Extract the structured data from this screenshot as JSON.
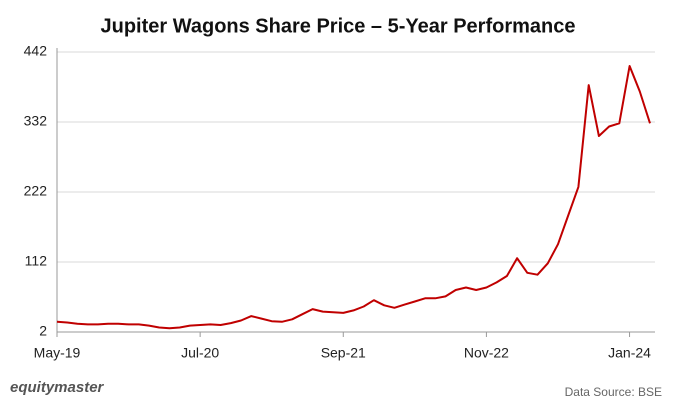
{
  "chart_data": {
    "type": "line",
    "title": "Jupiter Wagons Share Price – 5-Year Performance",
    "source": "Data Source: BSE",
    "brand": "equitymaster",
    "categories": [
      "May-19",
      null,
      null,
      null,
      null,
      null,
      null,
      null,
      null,
      null,
      null,
      null,
      null,
      null,
      "Jul-20",
      null,
      null,
      null,
      null,
      null,
      null,
      null,
      null,
      null,
      null,
      null,
      null,
      null,
      "Sep-21",
      null,
      null,
      null,
      null,
      null,
      null,
      null,
      null,
      null,
      null,
      null,
      null,
      null,
      "Nov-22",
      null,
      null,
      null,
      null,
      null,
      null,
      null,
      null,
      null,
      null,
      null,
      null,
      null,
      "Jan-24",
      null,
      null
    ],
    "series": [
      {
        "name": "Share Price",
        "color": "#c00000",
        "values": [
          18,
          17,
          15,
          14,
          14,
          15,
          15,
          14,
          14,
          12,
          9,
          8,
          9,
          12,
          13,
          14,
          13,
          16,
          20,
          27,
          23,
          19,
          18,
          22,
          30,
          38,
          34,
          33,
          32,
          36,
          42,
          52,
          44,
          40,
          45,
          50,
          55,
          55,
          58,
          68,
          72,
          68,
          72,
          80,
          90,
          118,
          95,
          92,
          110,
          140,
          185,
          230,
          390,
          310,
          325,
          330,
          420,
          380,
          330
        ]
      }
    ],
    "ylim": [
      2,
      442
    ],
    "yticks": [
      2,
      112,
      222,
      332,
      442
    ],
    "grid": true
  }
}
